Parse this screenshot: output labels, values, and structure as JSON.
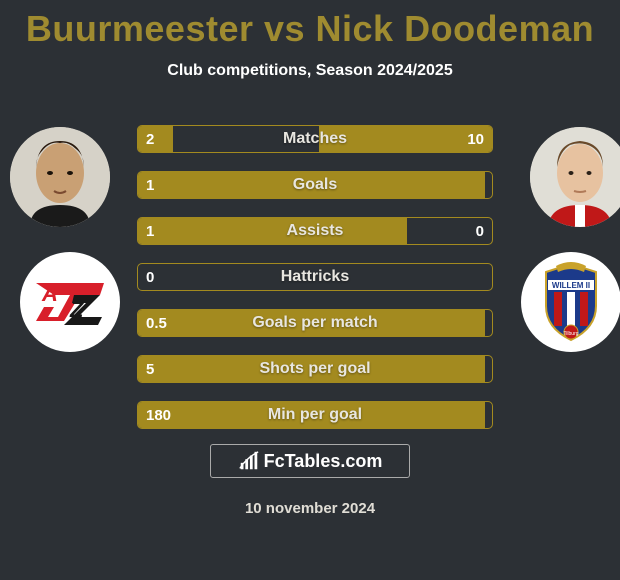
{
  "title": "Buurmeester vs Nick Doodeman",
  "subtitle": "Club competitions, Season 2024/2025",
  "date": "10 november 2024",
  "brand_logo_text": "FcTables.com",
  "colors": {
    "title": "#9f8b30",
    "background": "#2c3035",
    "bar_fill": "#a38a1f",
    "bar_border": "#a38a1f",
    "text": "#ffffff",
    "muted_text": "#e0ddd5"
  },
  "player_left": {
    "name": "Buurmeester",
    "club": "AZ"
  },
  "player_right": {
    "name": "Nick Doodeman",
    "club": "Willem II"
  },
  "bars": [
    {
      "label": "Matches",
      "left_value": "2",
      "right_value": "10",
      "left_pct": 10,
      "right_pct": 49
    },
    {
      "label": "Goals",
      "left_value": "1",
      "right_value": "",
      "left_pct": 98,
      "right_pct": 0
    },
    {
      "label": "Assists",
      "left_value": "1",
      "right_value": "0",
      "left_pct": 76,
      "right_pct": 0
    },
    {
      "label": "Hattricks",
      "left_value": "0",
      "right_value": "",
      "left_pct": 0,
      "right_pct": 0
    },
    {
      "label": "Goals per match",
      "left_value": "0.5",
      "right_value": "",
      "left_pct": 98,
      "right_pct": 0
    },
    {
      "label": "Shots per goal",
      "left_value": "5",
      "right_value": "",
      "left_pct": 98,
      "right_pct": 0
    },
    {
      "label": "Min per goal",
      "left_value": "180",
      "right_value": "",
      "left_pct": 98,
      "right_pct": 0
    }
  ]
}
